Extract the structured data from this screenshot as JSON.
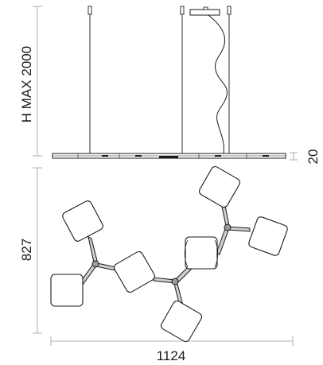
{
  "drawing": {
    "height_label": "H MAX 2000",
    "thickness_label": "20",
    "depth_label": "827",
    "width_label": "1124"
  }
}
